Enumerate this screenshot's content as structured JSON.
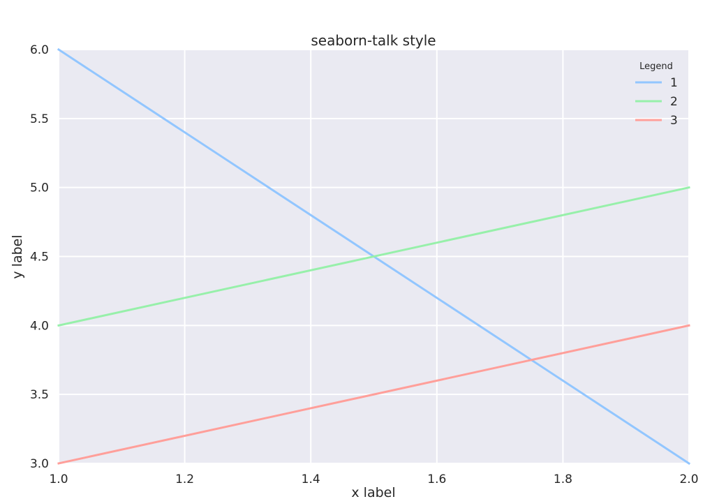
{
  "chart_data": {
    "type": "line",
    "title": "seaborn-talk style",
    "xlabel": "x label",
    "ylabel": "y label",
    "xlim": [
      1.0,
      2.0
    ],
    "ylim": [
      3.0,
      6.0
    ],
    "x_ticks": [
      "1.0",
      "1.2",
      "1.4",
      "1.6",
      "1.8",
      "2.0"
    ],
    "y_ticks": [
      "3.0",
      "3.5",
      "4.0",
      "4.5",
      "5.0",
      "5.5",
      "6.0"
    ],
    "grid": true,
    "legend": {
      "title": "Legend",
      "placement": "top-right"
    },
    "series": [
      {
        "name": "1",
        "color": "#92c6ff",
        "x": [
          1.0,
          2.0
        ],
        "y": [
          6.0,
          3.0
        ]
      },
      {
        "name": "2",
        "color": "#97f0aa",
        "x": [
          1.0,
          2.0
        ],
        "y": [
          4.0,
          5.0
        ]
      },
      {
        "name": "3",
        "color": "#ff9f9a",
        "x": [
          1.0,
          2.0
        ],
        "y": [
          3.0,
          4.0
        ]
      }
    ],
    "colors": {
      "plot_background": "#eaeaf2",
      "grid": "#ffffff",
      "text": "#262626"
    }
  }
}
